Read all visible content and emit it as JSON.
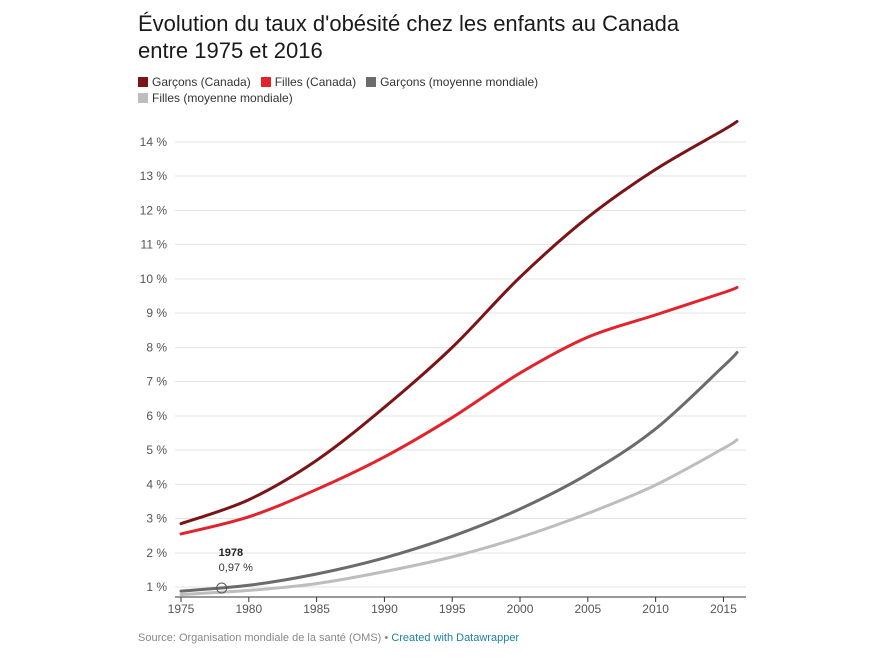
{
  "chart_data": {
    "type": "line",
    "title": "Évolution du taux d'obésité chez les enfants au Canada entre 1975 et 2016",
    "title_lines": [
      "Évolution du taux d'obésité chez les enfants au Canada",
      "entre 1975 et 2016"
    ],
    "xlim": [
      1975,
      2016
    ],
    "ylim": [
      0.6,
      14.9
    ],
    "x_ticks": [
      1975,
      1980,
      1985,
      1990,
      1995,
      2000,
      2005,
      2010,
      2015
    ],
    "y_ticks": [
      1,
      2,
      3,
      4,
      5,
      6,
      7,
      8,
      9,
      10,
      11,
      12,
      13,
      14
    ],
    "y_tick_labels": [
      "1 %",
      "2 %",
      "3 %",
      "4 %",
      "5 %",
      "6 %",
      "7 %",
      "8 %",
      "9 %",
      "10 %",
      "11 %",
      "12 %",
      "13 %",
      "14 %"
    ],
    "grid": true,
    "legend_position": "top-left",
    "x": [
      1975,
      1980,
      1985,
      1990,
      1995,
      2000,
      2005,
      2010,
      2015,
      2016
    ],
    "series": [
      {
        "name": "Garçons (Canada)",
        "color": "#7b1416",
        "values": [
          2.85,
          3.55,
          4.7,
          6.25,
          8.0,
          10.05,
          11.8,
          13.2,
          14.35,
          14.6
        ]
      },
      {
        "name": "Filles (Canada)",
        "color": "#e3232b",
        "values": [
          2.55,
          3.05,
          3.85,
          4.8,
          5.95,
          7.25,
          8.3,
          8.95,
          9.6,
          9.75
        ]
      },
      {
        "name": "Garçons (moyenne mondiale)",
        "color": "#6b6b6b",
        "values": [
          0.88,
          1.05,
          1.38,
          1.85,
          2.48,
          3.28,
          4.3,
          5.62,
          7.45,
          7.85
        ]
      },
      {
        "name": "Filles (moyenne mondiale)",
        "color": "#bdbdbd",
        "values": [
          0.78,
          0.9,
          1.1,
          1.45,
          1.88,
          2.45,
          3.15,
          3.98,
          5.05,
          5.3
        ]
      }
    ],
    "annotation": {
      "x": 1978,
      "y": 0.97,
      "label_year": "1978",
      "label_value": "0,97 %"
    }
  },
  "footer": {
    "source": "Source: Organisation mondiale de la santé (OMS)",
    "separator": " • ",
    "credit": "Created with Datawrapper"
  }
}
